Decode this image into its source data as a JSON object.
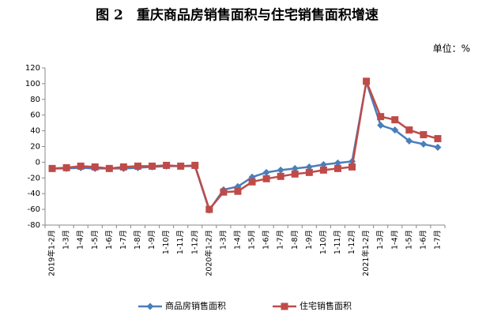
{
  "chart_data": {
    "type": "line",
    "title": "图 2　重庆商品房销售面积与住宅销售面积增速",
    "unit_label": "单位：%",
    "categories": [
      "2019年1-2月",
      "1-3月",
      "1-4月",
      "1-5月",
      "1-6月",
      "1-7月",
      "1-8月",
      "1-9月",
      "1-10月",
      "1-11月",
      "1-12月",
      "2020年1-2月",
      "1-3月",
      "1-4月",
      "1-5月",
      "1-6月",
      "1-7月",
      "1-8月",
      "1-9月",
      "1-10月",
      "1-11月",
      "1-12月",
      "2021年1-2月",
      "1-3月",
      "1-4月",
      "1-5月",
      "1-6月",
      "1-7月"
    ],
    "series": [
      {
        "name": "商品房销售面积",
        "color": "#4a7ebb",
        "marker": "diamond",
        "values": [
          -8,
          -8,
          -7,
          -8,
          -8,
          -8,
          -7,
          -6,
          -5,
          -5,
          -5,
          -61,
          -35,
          -31,
          -19,
          -13,
          -10,
          -8,
          -6,
          -3,
          -1,
          1,
          102,
          47,
          41,
          27,
          23,
          19
        ]
      },
      {
        "name": "住宅销售面积",
        "color": "#be4b48",
        "marker": "square",
        "values": [
          -8,
          -7,
          -5,
          -6,
          -8,
          -6,
          -5,
          -5,
          -4,
          -5,
          -4,
          -60,
          -38,
          -37,
          -25,
          -21,
          -18,
          -15,
          -13,
          -10,
          -8,
          -6,
          103,
          58,
          54,
          41,
          35,
          30
        ]
      }
    ],
    "ylim": [
      -80,
      120
    ],
    "yticks": [
      -80,
      -60,
      -40,
      -20,
      0,
      20,
      40,
      60,
      80,
      100,
      120
    ]
  }
}
